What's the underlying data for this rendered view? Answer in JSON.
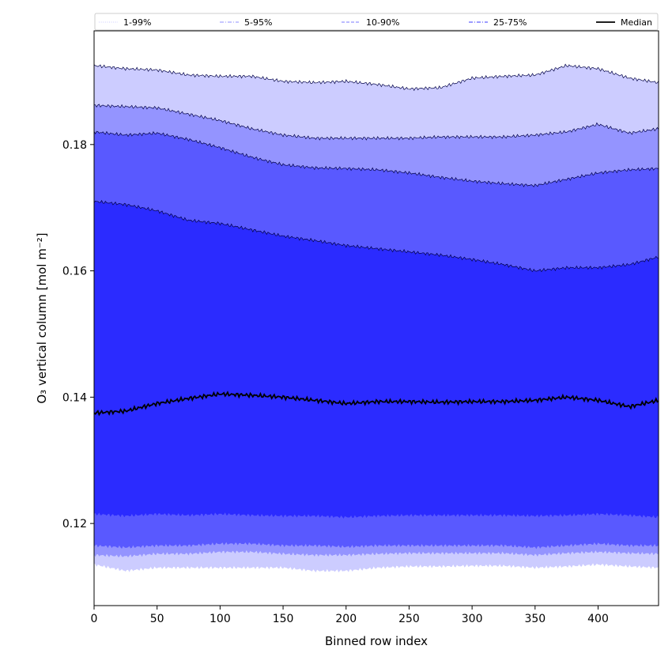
{
  "chart_data": {
    "type": "area",
    "xlabel": "Binned row index",
    "ylabel": "O₃ vertical column [mol m⁻²]",
    "xlim": [
      0,
      448
    ],
    "ylim": [
      0.107,
      0.198
    ],
    "xticks": [
      0,
      50,
      100,
      150,
      200,
      250,
      300,
      350,
      400
    ],
    "yticks": [
      0.12,
      0.14,
      0.16,
      0.18
    ],
    "ytick_labels": [
      "0.12",
      "0.14",
      "0.16",
      "0.18"
    ],
    "grid": false,
    "legend_position": "top",
    "x": [
      0,
      25,
      50,
      75,
      100,
      125,
      150,
      175,
      200,
      225,
      250,
      275,
      300,
      325,
      350,
      375,
      400,
      425,
      448
    ],
    "bands": [
      {
        "name": "1-99%",
        "color": "#ccccff",
        "lower": [
          0.1135,
          0.1125,
          0.113,
          0.113,
          0.113,
          0.113,
          0.113,
          0.1125,
          0.1125,
          0.113,
          0.1132,
          0.1132,
          0.1133,
          0.1133,
          0.113,
          0.1132,
          0.1135,
          0.1132,
          0.113
        ],
        "upper": [
          0.1925,
          0.192,
          0.1918,
          0.191,
          0.1908,
          0.1908,
          0.19,
          0.1898,
          0.19,
          0.1895,
          0.1888,
          0.189,
          0.1905,
          0.1908,
          0.191,
          0.1925,
          0.192,
          0.1905,
          0.1898
        ]
      },
      {
        "name": "5-95%",
        "color": "#9494ff",
        "lower": [
          0.115,
          0.1148,
          0.1152,
          0.1152,
          0.1155,
          0.1155,
          0.1152,
          0.115,
          0.115,
          0.1152,
          0.1153,
          0.1153,
          0.1153,
          0.1153,
          0.115,
          0.1153,
          0.1155,
          0.1153,
          0.1152
        ],
        "upper": [
          0.1862,
          0.186,
          0.1858,
          0.1848,
          0.1838,
          0.1825,
          0.1815,
          0.181,
          0.181,
          0.181,
          0.181,
          0.1812,
          0.1812,
          0.1812,
          0.1815,
          0.182,
          0.1832,
          0.1818,
          0.1825
        ]
      },
      {
        "name": "10-90%",
        "color": "#5959ff",
        "lower": [
          0.1165,
          0.1162,
          0.1165,
          0.1165,
          0.1168,
          0.1168,
          0.1165,
          0.1165,
          0.1163,
          0.1165,
          0.1165,
          0.1165,
          0.1165,
          0.1165,
          0.1162,
          0.1165,
          0.1168,
          0.1165,
          0.1165
        ],
        "upper": [
          0.182,
          0.1815,
          0.1818,
          0.1808,
          0.1795,
          0.178,
          0.1768,
          0.1763,
          0.1762,
          0.176,
          0.1755,
          0.1748,
          0.1742,
          0.1738,
          0.1735,
          0.1745,
          0.1755,
          0.176,
          0.1762
        ]
      },
      {
        "name": "25-75%",
        "color": "#2b2bff",
        "lower": [
          0.1215,
          0.1212,
          0.1215,
          0.1213,
          0.1215,
          0.1213,
          0.1212,
          0.1212,
          0.121,
          0.1212,
          0.1213,
          0.1213,
          0.1213,
          0.1213,
          0.1212,
          0.1213,
          0.1215,
          0.1213,
          0.121
        ],
        "upper": [
          0.171,
          0.1705,
          0.1695,
          0.168,
          0.1675,
          0.1665,
          0.1655,
          0.1648,
          0.164,
          0.1635,
          0.163,
          0.1625,
          0.1618,
          0.161,
          0.16,
          0.1605,
          0.1605,
          0.161,
          0.1622
        ]
      }
    ],
    "series": [
      {
        "name": "Median",
        "color": "#000000",
        "values": [
          0.1375,
          0.1378,
          0.139,
          0.1398,
          0.1405,
          0.1403,
          0.14,
          0.1395,
          0.139,
          0.1393,
          0.1393,
          0.1392,
          0.1393,
          0.1393,
          0.1395,
          0.14,
          0.1395,
          0.1385,
          0.1395
        ]
      }
    ],
    "legend": [
      {
        "label": "1-99%",
        "style": "dotted",
        "color": "#c9c9ff"
      },
      {
        "label": "5-95%",
        "style": "dashdot",
        "color": "#8f8fff"
      },
      {
        "label": "10-90%",
        "style": "dashed",
        "color": "#7878ff"
      },
      {
        "label": "25-75%",
        "style": "dashdot",
        "color": "#3a3aff"
      },
      {
        "label": "Median",
        "style": "solid",
        "color": "#000000"
      }
    ]
  }
}
